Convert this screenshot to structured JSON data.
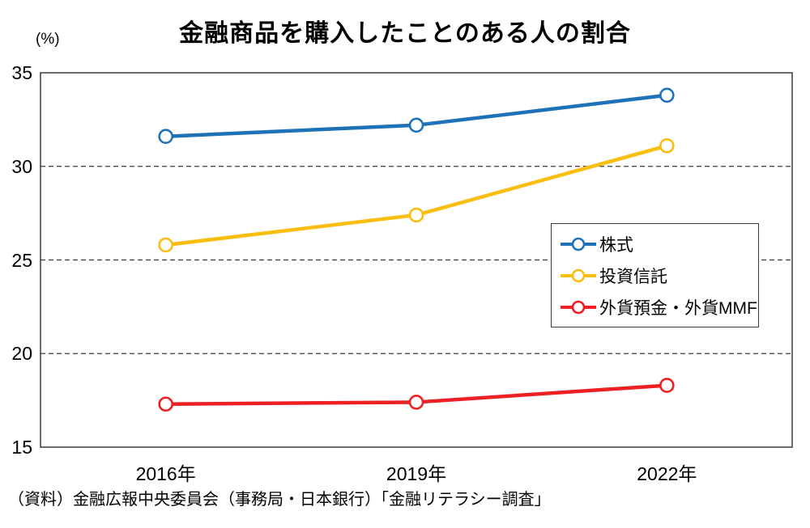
{
  "chart_data": {
    "type": "line",
    "title": "金融商品を購入したことのある人の割合",
    "unit_label": "(%)",
    "categories": [
      "2016年",
      "2019年",
      "2022年"
    ],
    "series": [
      {
        "name": "株式",
        "color": "#1F72B8",
        "values": [
          31.6,
          32.2,
          33.8
        ]
      },
      {
        "name": "投資信託",
        "color": "#F9BE10",
        "values": [
          25.8,
          27.4,
          31.1
        ]
      },
      {
        "name": "外貨預金・外貨MMF",
        "color": "#ED2024",
        "values": [
          17.3,
          17.4,
          18.3
        ]
      }
    ],
    "ylim": [
      15,
      35
    ],
    "y_ticks": [
      35,
      30,
      25,
      20,
      15
    ],
    "grid": "horizontal-dashed",
    "legend_position": "middle-right",
    "marker": "open-circle",
    "background": "#ffffff"
  },
  "source_note": "（資料）金融広報中央委員会（事務局・日本銀行）「金融リテラシー調査」"
}
